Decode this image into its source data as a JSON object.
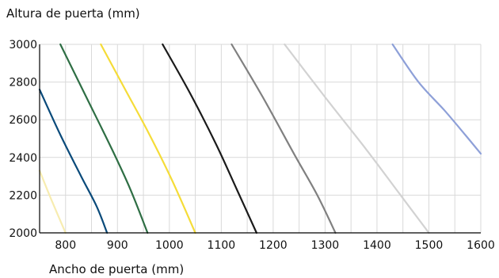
{
  "chart_data": {
    "type": "line",
    "ylabel": "Altura de puerta (mm)",
    "xlabel": "Ancho de puerta (mm)",
    "xlim": [
      750,
      1600
    ],
    "ylim": [
      2000,
      3000
    ],
    "x_ticks": [
      800,
      900,
      1000,
      1100,
      1200,
      1300,
      1400,
      1500,
      1600
    ],
    "y_ticks": [
      2000,
      2200,
      2400,
      2600,
      2800,
      3000
    ],
    "grid": true,
    "series": [
      {
        "color": "#f7ecb0",
        "points": [
          [
            750,
            2330
          ],
          [
            772,
            2180
          ],
          [
            800,
            2000
          ]
        ]
      },
      {
        "color": "#0a4a7a",
        "points": [
          [
            750,
            2760
          ],
          [
            790,
            2520
          ],
          [
            830,
            2300
          ],
          [
            860,
            2140
          ],
          [
            880,
            2000
          ]
        ]
      },
      {
        "color": "#2e6e44",
        "points": [
          [
            790,
            3000
          ],
          [
            840,
            2720
          ],
          [
            890,
            2440
          ],
          [
            925,
            2230
          ],
          [
            958,
            2000
          ]
        ]
      },
      {
        "color": "#f5dc38",
        "points": [
          [
            868,
            3000
          ],
          [
            915,
            2760
          ],
          [
            960,
            2530
          ],
          [
            1005,
            2280
          ],
          [
            1050,
            2000
          ]
        ]
      },
      {
        "color": "#1a1a1a",
        "points": [
          [
            987,
            3000
          ],
          [
            1040,
            2740
          ],
          [
            1090,
            2470
          ],
          [
            1130,
            2230
          ],
          [
            1168,
            2000
          ]
        ]
      },
      {
        "color": "#808080",
        "points": [
          [
            1120,
            3000
          ],
          [
            1180,
            2720
          ],
          [
            1240,
            2420
          ],
          [
            1285,
            2200
          ],
          [
            1320,
            2000
          ]
        ]
      },
      {
        "color": "#d2d2d2",
        "points": [
          [
            1222,
            3000
          ],
          [
            1300,
            2720
          ],
          [
            1380,
            2440
          ],
          [
            1440,
            2220
          ],
          [
            1500,
            2000
          ]
        ]
      },
      {
        "color": "#8ea0d8",
        "points": [
          [
            1430,
            3000
          ],
          [
            1480,
            2800
          ],
          [
            1530,
            2650
          ],
          [
            1570,
            2520
          ],
          [
            1600,
            2420
          ]
        ]
      }
    ]
  }
}
